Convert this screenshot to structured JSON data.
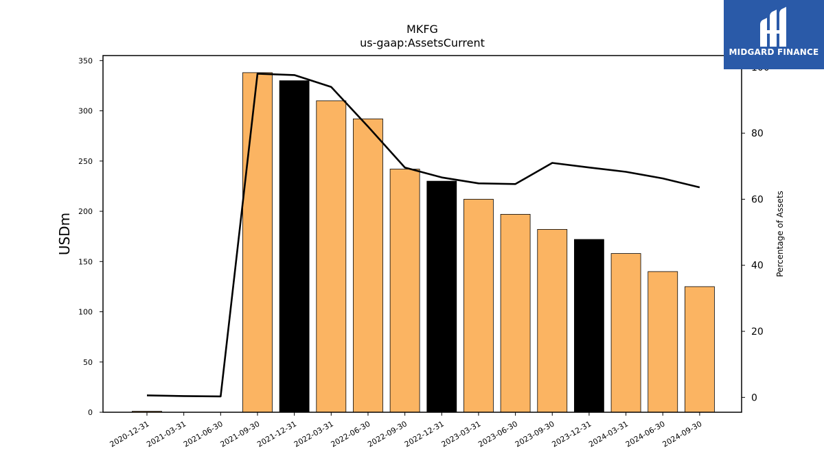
{
  "chart_data": {
    "type": "bar",
    "title": "MKFG",
    "subtitle": "us-gaap:AssetsCurrent",
    "ylabel": "USDm",
    "y2label": "Percentage of Assets",
    "ylim": [
      0,
      355
    ],
    "y2lim": [
      -4.5,
      103.5
    ],
    "yticks": [
      0,
      50,
      100,
      150,
      200,
      250,
      300,
      350
    ],
    "y2ticks": [
      0,
      20,
      40,
      60,
      80,
      100
    ],
    "categories": [
      "2020-12-31",
      "2021-03-31",
      "2021-06-30",
      "2021-09-30",
      "2021-12-31",
      "2022-03-31",
      "2022-06-30",
      "2022-09-30",
      "2022-12-31",
      "2023-03-31",
      "2023-06-30",
      "2023-09-30",
      "2023-12-31",
      "2024-03-31",
      "2024-06-30",
      "2024-09-30"
    ],
    "series": [
      {
        "type": "bar",
        "values": [
          1.0,
          0.0,
          0.0,
          338,
          330,
          310,
          292,
          242,
          230,
          212,
          197,
          182,
          172,
          158,
          140,
          125
        ],
        "colors": [
          "#fbb462",
          "#fbb462",
          "#fbb462",
          "#fbb462",
          "#000000",
          "#fbb462",
          "#fbb462",
          "#fbb462",
          "#000000",
          "#fbb462",
          "#fbb462",
          "#fbb462",
          "#000000",
          "#fbb462",
          "#fbb462",
          "#fbb462"
        ]
      },
      {
        "type": "line",
        "axis": "right",
        "color": "#000000",
        "values": [
          0.6,
          0.4,
          0.3,
          98.0,
          97.6,
          94.0,
          82.0,
          69.6,
          66.6,
          64.8,
          64.6,
          71.0,
          69.6,
          68.3,
          66.3,
          63.6
        ]
      }
    ]
  },
  "logo": {
    "text": "MIDGARD FINANCE",
    "icon": "midgard-finance-logo-icon",
    "bg_color": "#2a5aa8"
  }
}
